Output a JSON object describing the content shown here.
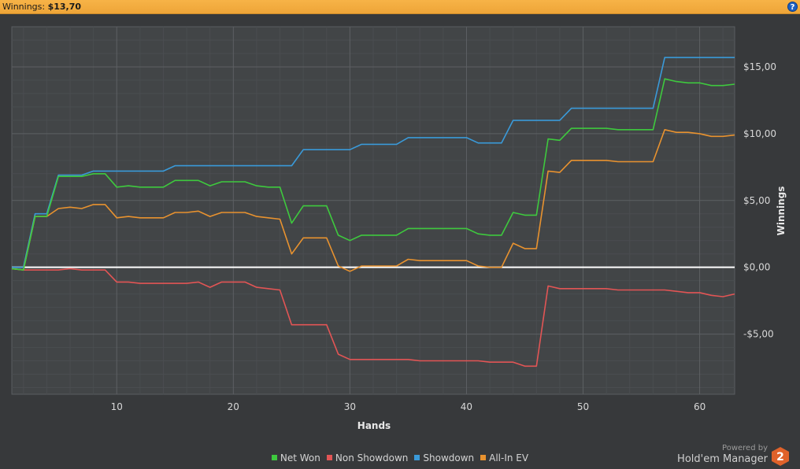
{
  "header": {
    "label": "Winnings:",
    "value": "$13,70",
    "help_icon": "question-icon"
  },
  "branding": {
    "powered_by": "Powered by",
    "product": "Hold'em Manager",
    "logo_text": "2"
  },
  "chart_data": {
    "type": "line",
    "xlabel": "Hands",
    "ylabel": "Winnings",
    "xlim": [
      1,
      63
    ],
    "ylim": [
      -9.5,
      18
    ],
    "x_ticks": [
      10,
      20,
      30,
      40,
      50,
      60
    ],
    "y_ticks": [
      {
        "value": 15,
        "label": "$15,00"
      },
      {
        "value": 10,
        "label": "$10,00"
      },
      {
        "value": 5,
        "label": "$5,00"
      },
      {
        "value": 0,
        "label": "$0,00"
      },
      {
        "value": -5,
        "label": "-$5,00"
      }
    ],
    "grid": true,
    "legend_position": "bottom",
    "x": [
      1,
      2,
      3,
      4,
      5,
      6,
      7,
      8,
      9,
      10,
      11,
      12,
      13,
      14,
      15,
      16,
      17,
      18,
      19,
      20,
      21,
      22,
      23,
      24,
      25,
      26,
      27,
      28,
      29,
      30,
      31,
      32,
      33,
      34,
      35,
      36,
      37,
      38,
      39,
      40,
      41,
      42,
      43,
      44,
      45,
      46,
      47,
      48,
      49,
      50,
      51,
      52,
      53,
      54,
      55,
      56,
      57,
      58,
      59,
      60,
      61,
      62,
      63
    ],
    "series": [
      {
        "name": "Net Won",
        "color": "#3ec93e",
        "values": [
          -0.1,
          -0.2,
          3.8,
          3.8,
          6.8,
          6.8,
          6.8,
          7.0,
          7.0,
          6.0,
          6.1,
          6.0,
          6.0,
          6.0,
          6.5,
          6.5,
          6.5,
          6.1,
          6.4,
          6.4,
          6.4,
          6.1,
          6.0,
          6.0,
          3.3,
          4.6,
          4.6,
          4.6,
          2.4,
          2.0,
          2.4,
          2.4,
          2.4,
          2.4,
          2.9,
          2.9,
          2.9,
          2.9,
          2.9,
          2.9,
          2.5,
          2.4,
          2.4,
          4.1,
          3.9,
          3.9,
          9.6,
          9.5,
          10.4,
          10.4,
          10.4,
          10.4,
          10.3,
          10.3,
          10.3,
          10.3,
          14.1,
          13.9,
          13.8,
          13.8,
          13.6,
          13.6,
          13.7
        ]
      },
      {
        "name": "Non Showdown",
        "color": "#e25555",
        "values": [
          -0.1,
          -0.2,
          -0.2,
          -0.2,
          -0.2,
          -0.1,
          -0.2,
          -0.2,
          -0.2,
          -1.1,
          -1.1,
          -1.2,
          -1.2,
          -1.2,
          -1.2,
          -1.2,
          -1.1,
          -1.5,
          -1.1,
          -1.1,
          -1.1,
          -1.5,
          -1.6,
          -1.7,
          -4.3,
          -4.3,
          -4.3,
          -4.3,
          -6.5,
          -6.9,
          -6.9,
          -6.9,
          -6.9,
          -6.9,
          -6.9,
          -7.0,
          -7.0,
          -7.0,
          -7.0,
          -7.0,
          -7.0,
          -7.1,
          -7.1,
          -7.1,
          -7.4,
          -7.4,
          -1.4,
          -1.6,
          -1.6,
          -1.6,
          -1.6,
          -1.6,
          -1.7,
          -1.7,
          -1.7,
          -1.7,
          -1.7,
          -1.8,
          -1.9,
          -1.9,
          -2.1,
          -2.2,
          -2.0
        ]
      },
      {
        "name": "Showdown",
        "color": "#3a9ad9",
        "values": [
          0.0,
          0.0,
          4.0,
          4.0,
          6.9,
          6.9,
          6.9,
          7.2,
          7.2,
          7.2,
          7.2,
          7.2,
          7.2,
          7.2,
          7.6,
          7.6,
          7.6,
          7.6,
          7.6,
          7.6,
          7.6,
          7.6,
          7.6,
          7.6,
          7.6,
          8.8,
          8.8,
          8.8,
          8.8,
          8.8,
          9.2,
          9.2,
          9.2,
          9.2,
          9.7,
          9.7,
          9.7,
          9.7,
          9.7,
          9.7,
          9.3,
          9.3,
          9.3,
          11.0,
          11.0,
          11.0,
          11.0,
          11.0,
          11.9,
          11.9,
          11.9,
          11.9,
          11.9,
          11.9,
          11.9,
          11.9,
          15.7,
          15.7,
          15.7,
          15.7,
          15.7,
          15.7,
          15.7
        ]
      },
      {
        "name": "All-In EV",
        "color": "#e8922f",
        "values": [
          -0.1,
          -0.2,
          3.8,
          3.8,
          4.4,
          4.5,
          4.4,
          4.7,
          4.7,
          3.7,
          3.8,
          3.7,
          3.7,
          3.7,
          4.1,
          4.1,
          4.2,
          3.8,
          4.1,
          4.1,
          4.1,
          3.8,
          3.7,
          3.6,
          1.0,
          2.2,
          2.2,
          2.2,
          0.1,
          -0.3,
          0.1,
          0.1,
          0.1,
          0.1,
          0.6,
          0.5,
          0.5,
          0.5,
          0.5,
          0.5,
          0.1,
          0.0,
          0.0,
          1.8,
          1.4,
          1.4,
          7.2,
          7.1,
          8.0,
          8.0,
          8.0,
          8.0,
          7.9,
          7.9,
          7.9,
          7.9,
          10.3,
          10.1,
          10.1,
          10.0,
          9.8,
          9.8,
          9.9
        ]
      }
    ]
  }
}
